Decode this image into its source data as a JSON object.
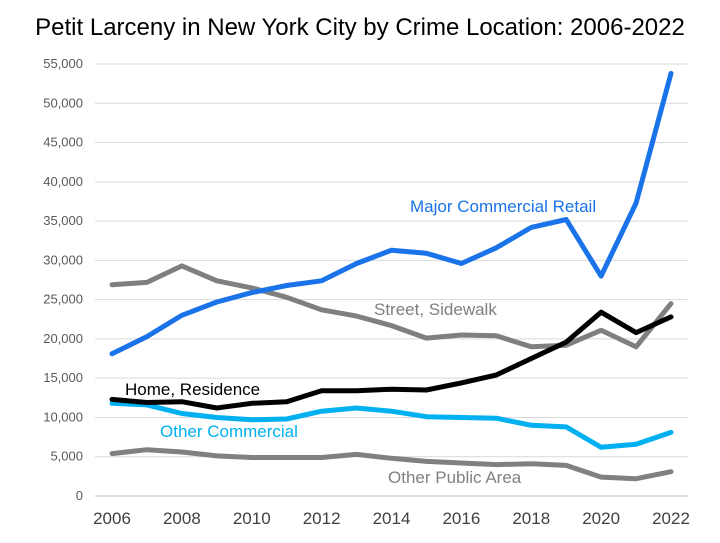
{
  "chart_data": {
    "type": "line",
    "title": "Petit Larceny in New York City by Crime Location: 2006-2022",
    "xlabel": "",
    "ylabel": "",
    "ylim": [
      0,
      55000
    ],
    "yticks": [
      0,
      5000,
      10000,
      15000,
      20000,
      25000,
      30000,
      35000,
      40000,
      45000,
      50000,
      55000
    ],
    "ytick_labels": [
      "0",
      "5,000",
      "10,000",
      "15,000",
      "20,000",
      "25,000",
      "30,000",
      "35,000",
      "40,000",
      "45,000",
      "50,000",
      "55,000"
    ],
    "xticks": [
      "2006",
      "2008",
      "2010",
      "2012",
      "2014",
      "2016",
      "2018",
      "2020",
      "2022"
    ],
    "grid": "horizontal",
    "x": [
      2006,
      2007,
      2008,
      2009,
      2010,
      2011,
      2012,
      2013,
      2014,
      2015,
      2016,
      2017,
      2018,
      2019,
      2020,
      2021,
      2022
    ],
    "series": [
      {
        "name": "Major Commercial Retail",
        "color": "#1a73e8",
        "values": [
          18100,
          20300,
          23000,
          24700,
          25900,
          26800,
          27400,
          29600,
          31300,
          30900,
          29600,
          31600,
          34200,
          35200,
          28000,
          37300,
          53800
        ]
      },
      {
        "name": "Street, Sidewalk",
        "color": "#7f7f7f",
        "values": [
          26900,
          27200,
          29300,
          27400,
          26500,
          25300,
          23700,
          22900,
          21700,
          20100,
          20500,
          20400,
          19000,
          19200,
          21100,
          19000,
          24500
        ]
      },
      {
        "name": "Home, Residence",
        "color": "#000000",
        "values": [
          12300,
          11900,
          12000,
          11200,
          11800,
          12000,
          13400,
          13400,
          13600,
          13500,
          14400,
          15400,
          17500,
          19600,
          23400,
          20800,
          22800
        ]
      },
      {
        "name": "Other Commercial",
        "color": "#00b0f0",
        "values": [
          11800,
          11600,
          10500,
          10000,
          9700,
          9800,
          10800,
          11200,
          10800,
          10100,
          10000,
          9900,
          9000,
          8800,
          6200,
          6600,
          8100
        ]
      },
      {
        "name": "Other Public Area",
        "color": "#808080",
        "values": [
          5400,
          5900,
          5600,
          5100,
          4900,
          4900,
          4900,
          5300,
          4800,
          4400,
          4200,
          4000,
          4100,
          3900,
          2400,
          2200,
          3100
        ]
      }
    ]
  }
}
